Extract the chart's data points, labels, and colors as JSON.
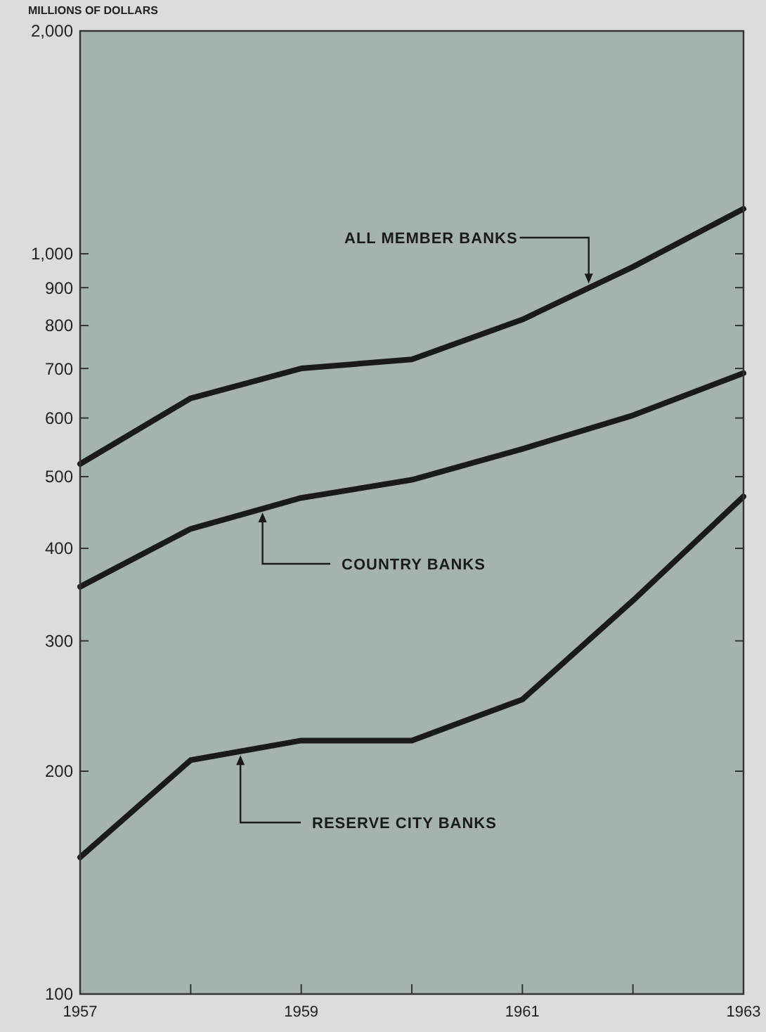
{
  "chart_data": {
    "type": "line",
    "ylabel": "MILLIONS OF DOLLARS",
    "x": [
      1957,
      1958,
      1959,
      1960,
      1961,
      1962,
      1963
    ],
    "xlim": [
      1957,
      1963
    ],
    "xticks": [
      1957,
      {
        "value": 1958,
        "label": null
      },
      1959,
      {
        "value": 1960,
        "label": null
      },
      1961,
      {
        "value": 1962,
        "label": null
      },
      1963
    ],
    "ylim": [
      100,
      2000
    ],
    "yticks": [
      100,
      200,
      300,
      400,
      500,
      600,
      700,
      800,
      900,
      {
        "value": 1000,
        "label": "1,000"
      },
      {
        "value": 2000,
        "label": "2,000"
      }
    ],
    "log": true,
    "grid": false,
    "marker": "none",
    "line_style": "solid",
    "annotations": [
      {
        "text": "ALL MEMBER BANKS",
        "x": 1961.6,
        "y": 900
      },
      {
        "text": "COUNTRY BANKS",
        "x": 1958.65,
        "y": 453
      },
      {
        "text": "RESERVE CITY BANKS",
        "x": 1958.45,
        "y": 213
      }
    ],
    "series": [
      {
        "color": "#1a1a1a",
        "values": [
          520,
          638,
          700,
          720,
          815,
          960,
          1150
        ]
      },
      {
        "color": "#1a1a1a",
        "values": [
          355,
          425,
          468,
          495,
          545,
          605,
          690
        ]
      },
      {
        "color": "#1a1a1a",
        "values": [
          153,
          207,
          220,
          220,
          250,
          340,
          470
        ]
      }
    ]
  }
}
